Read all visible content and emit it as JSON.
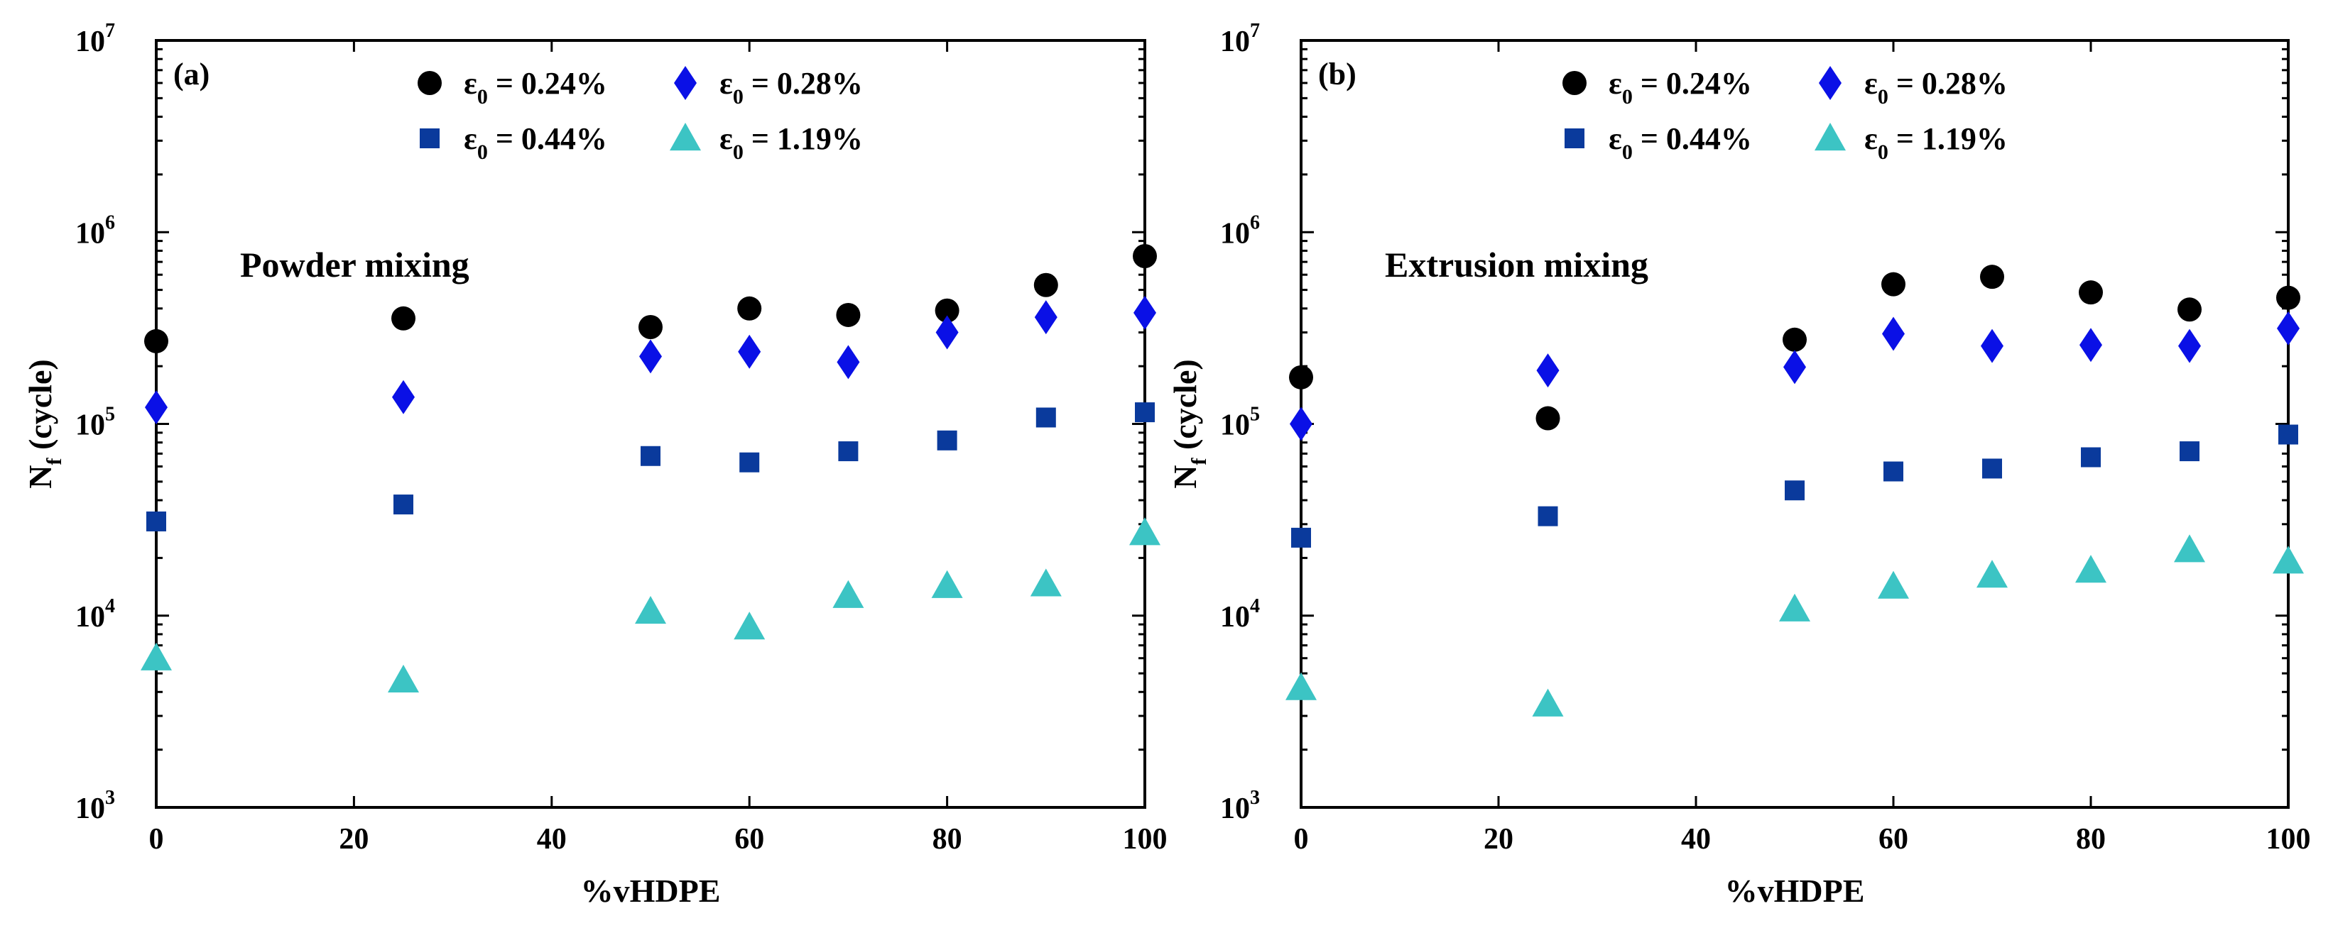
{
  "chart_data": [
    {
      "type": "scatter",
      "panel_label": "(a)",
      "annotation": "Powder mixing",
      "xlabel": "%vHDPE",
      "ylabel_main": "N",
      "ylabel_sub": "f",
      "ylabel_rest": " (cycle)",
      "xlim": [
        0,
        100
      ],
      "ylim": [
        1000,
        10000000
      ],
      "yscale": "log",
      "x_ticks": [
        0,
        20,
        40,
        60,
        80,
        100
      ],
      "x_tick_labels": [
        "0",
        "20",
        "40",
        "60",
        "80",
        "100"
      ],
      "y_ticks": [
        1000,
        10000,
        100000,
        1000000,
        10000000
      ],
      "y_tick_base": "10",
      "y_tick_exponents": [
        "3",
        "4",
        "5",
        "6",
        "7"
      ],
      "legend_position": "top",
      "series": [
        {
          "name": "ε0 = 0.24%",
          "symbol": "ε",
          "sub": "0",
          "value_text": " = 0.24%",
          "marker": "circle",
          "color": "#000000",
          "x": [
            0,
            25,
            50,
            60,
            70,
            80,
            90,
            100
          ],
          "y": [
            270000,
            355000,
            320000,
            400000,
            370000,
            390000,
            530000,
            750000
          ]
        },
        {
          "name": "ε0 = 0.28%",
          "symbol": "ε",
          "sub": "0",
          "value_text": " = 0.28%",
          "marker": "diamond",
          "color": "#0a10e6",
          "x": [
            0,
            25,
            50,
            60,
            70,
            80,
            90,
            100
          ],
          "y": [
            122000,
            138000,
            225000,
            238000,
            210000,
            300000,
            360000,
            380000
          ]
        },
        {
          "name": "ε0 = 0.44%",
          "symbol": "ε",
          "sub": "0",
          "value_text": " = 0.44%",
          "marker": "square",
          "color": "#0a3a9c",
          "x": [
            0,
            25,
            50,
            60,
            70,
            80,
            90,
            100
          ],
          "y": [
            31000,
            38000,
            68000,
            63000,
            72000,
            82000,
            108000,
            115000
          ]
        },
        {
          "name": "ε0 = 1.19%",
          "symbol": "ε",
          "sub": "0",
          "value_text": " = 1.19%",
          "marker": "triangle",
          "color": "#3cc4c4",
          "x": [
            0,
            25,
            50,
            60,
            70,
            80,
            90,
            100
          ],
          "y": [
            6000,
            4600,
            10500,
            8700,
            12700,
            14300,
            14600,
            27000
          ]
        }
      ]
    },
    {
      "type": "scatter",
      "panel_label": "(b)",
      "annotation": "Extrusion mixing",
      "xlabel": "%vHDPE",
      "ylabel_main": "N",
      "ylabel_sub": "f",
      "ylabel_rest": " (cycle)",
      "xlim": [
        0,
        100
      ],
      "ylim": [
        1000,
        10000000
      ],
      "yscale": "log",
      "x_ticks": [
        0,
        20,
        40,
        60,
        80,
        100
      ],
      "x_tick_labels": [
        "0",
        "20",
        "40",
        "60",
        "80",
        "100"
      ],
      "y_ticks": [
        1000,
        10000,
        100000,
        1000000,
        10000000
      ],
      "y_tick_base": "10",
      "y_tick_exponents": [
        "3",
        "4",
        "5",
        "6",
        "7"
      ],
      "legend_position": "top",
      "series": [
        {
          "name": "ε0 = 0.24%",
          "symbol": "ε",
          "sub": "0",
          "value_text": " = 0.24%",
          "marker": "circle",
          "color": "#000000",
          "x": [
            0,
            25,
            50,
            60,
            70,
            80,
            90,
            100
          ],
          "y": [
            175000,
            107000,
            275000,
            535000,
            585000,
            485000,
            395000,
            455000
          ]
        },
        {
          "name": "ε0 = 0.28%",
          "symbol": "ε",
          "sub": "0",
          "value_text": " = 0.28%",
          "marker": "diamond",
          "color": "#0a10e6",
          "x": [
            0,
            25,
            50,
            60,
            70,
            80,
            90,
            100
          ],
          "y": [
            100000,
            190000,
            198000,
            295000,
            255000,
            258000,
            255000,
            315000
          ]
        },
        {
          "name": "ε0 = 0.44%",
          "symbol": "ε",
          "sub": "0",
          "value_text": " = 0.44%",
          "marker": "square",
          "color": "#0a3a9c",
          "x": [
            0,
            25,
            50,
            60,
            70,
            80,
            90,
            100
          ],
          "y": [
            25500,
            33000,
            45000,
            56500,
            58500,
            67000,
            72000,
            88000
          ]
        },
        {
          "name": "ε0 = 1.19%",
          "symbol": "ε",
          "sub": "0",
          "value_text": " = 1.19%",
          "marker": "triangle",
          "color": "#3cc4c4",
          "x": [
            0,
            25,
            50,
            60,
            70,
            80,
            90,
            100
          ],
          "y": [
            4200,
            3450,
            10800,
            14200,
            16200,
            17200,
            22000,
            19200
          ]
        }
      ]
    }
  ]
}
